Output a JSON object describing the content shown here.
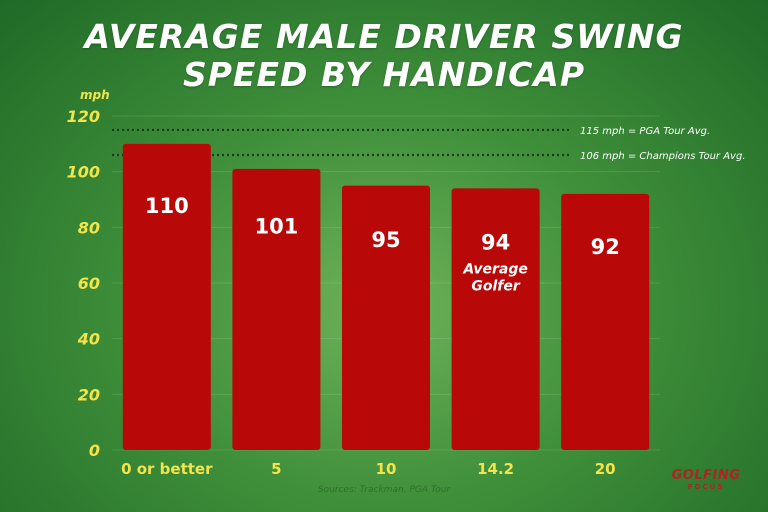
{
  "header": {
    "title_line1": "AVERAGE  MALE DRIVER SWING",
    "title_line2": "SPEED BY HANDICAP"
  },
  "unit_label": "mph",
  "source": "Sources: Trackman, PGA Tour",
  "logo": {
    "main": "GOLFING",
    "sub": "FOCUS"
  },
  "colors": {
    "bar": "#b80808",
    "tick_text": "#f2e44a",
    "category_text": "#f2e44a",
    "value_text": "#ffffff",
    "reference_line": "#1a3a1a"
  },
  "chart_data": {
    "type": "bar",
    "categories": [
      "0 or better",
      "5",
      "10",
      "14.2",
      "20"
    ],
    "values": [
      110,
      101,
      95,
      94,
      92
    ],
    "value_labels": [
      "110",
      "101",
      "95",
      "94",
      "92"
    ],
    "bar_notes": [
      [],
      [],
      [],
      [
        "Average",
        "Golfer"
      ],
      []
    ],
    "title": "AVERAGE  MALE DRIVER SWING SPEED BY HANDICAP",
    "xlabel": "",
    "ylabel": "mph",
    "ylim": [
      0,
      120
    ],
    "yticks": [
      0,
      20,
      40,
      60,
      80,
      100,
      120
    ],
    "grid": true,
    "reference_lines": [
      {
        "value": 115,
        "label": "115 mph = PGA Tour Avg."
      },
      {
        "value": 106,
        "label": "106 mph = Champions Tour Avg."
      }
    ]
  }
}
